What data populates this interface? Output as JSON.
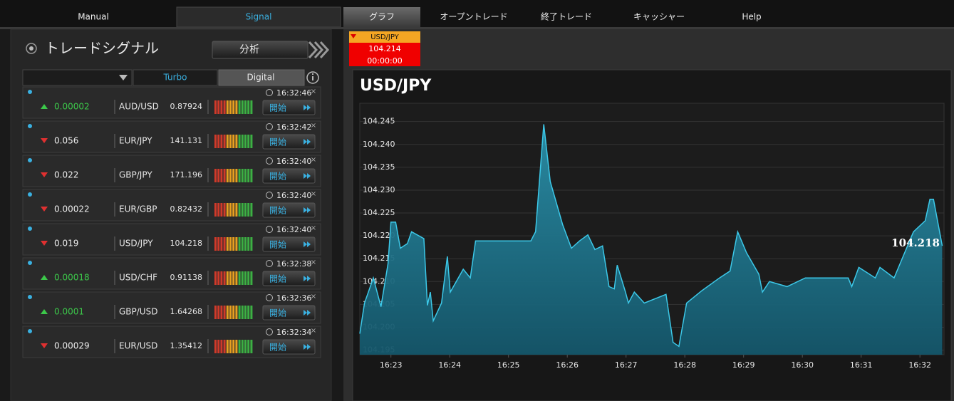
{
  "nav": {
    "left_tabs": [
      "Manual",
      "Signal"
    ],
    "right_tabs": [
      "グラフ",
      "オープントレード",
      "終了トレード",
      "キャッシャー",
      "Help"
    ]
  },
  "signals": {
    "title": "トレードシグナル",
    "analyze_button": "分析",
    "tabs": [
      "Turbo",
      "Digital"
    ],
    "rows": [
      {
        "direction": "up",
        "change": "0.00002",
        "pair": "AUD/USD",
        "price": "0.87924",
        "time": "16:32:46",
        "button": "開始"
      },
      {
        "direction": "down",
        "change": "0.056",
        "pair": "EUR/JPY",
        "price": "141.131",
        "time": "16:32:42",
        "button": "開始"
      },
      {
        "direction": "down",
        "change": "0.022",
        "pair": "GBP/JPY",
        "price": "171.196",
        "time": "16:32:40",
        "button": "開始"
      },
      {
        "direction": "down",
        "change": "0.00022",
        "pair": "EUR/GBP",
        "price": "0.82432",
        "time": "16:32:40",
        "button": "開始"
      },
      {
        "direction": "down",
        "change": "0.019",
        "pair": "USD/JPY",
        "price": "104.218",
        "time": "16:32:40",
        "button": "開始"
      },
      {
        "direction": "up",
        "change": "0.00018",
        "pair": "USD/CHF",
        "price": "0.91138",
        "time": "16:32:38",
        "button": "開始"
      },
      {
        "direction": "up",
        "change": "0.0001",
        "pair": "GBP/USD",
        "price": "1.64268",
        "time": "16:32:36",
        "button": "開始"
      },
      {
        "direction": "down",
        "change": "0.00029",
        "pair": "EUR/USD",
        "price": "1.35412",
        "time": "16:32:34",
        "button": "開始"
      }
    ]
  },
  "ticker": {
    "pair": "USD/JPY",
    "price": "104.214",
    "timer": "00:00:00"
  },
  "chart_data": {
    "type": "area",
    "title": "USD/JPY",
    "color": "#3cc8e8",
    "annotation": "104.218",
    "x": [
      982.47,
      982.55,
      982.7,
      982.83,
      982.95,
      983.0,
      983.08,
      983.16,
      983.28,
      983.35,
      983.56,
      983.62,
      983.67,
      983.72,
      983.86,
      983.96,
      984.01,
      984.23,
      984.35,
      984.44,
      985.38,
      985.46,
      985.6,
      985.71,
      985.92,
      986.07,
      986.21,
      986.35,
      986.47,
      986.6,
      986.71,
      986.8,
      986.85,
      986.99,
      987.04,
      987.14,
      987.31,
      987.68,
      987.8,
      987.9,
      988.03,
      988.29,
      988.59,
      988.77,
      988.9,
      989.05,
      989.26,
      989.32,
      989.44,
      989.74,
      990.05,
      990.78,
      990.84,
      990.96,
      991.24,
      991.32,
      991.56,
      991.89,
      992.09,
      992.17,
      992.23,
      992.38
    ],
    "values": [
      104.1986,
      104.2053,
      104.2108,
      104.2045,
      104.2139,
      104.223,
      104.223,
      104.2173,
      104.2183,
      104.2209,
      104.2194,
      104.2048,
      104.2077,
      104.2014,
      104.2053,
      104.2155,
      104.2077,
      104.2127,
      104.2108,
      104.2189,
      104.2189,
      104.2209,
      104.2444,
      104.2319,
      104.2225,
      104.2173,
      104.2189,
      104.2202,
      104.217,
      104.2178,
      104.2089,
      104.2084,
      104.2136,
      104.2077,
      104.2053,
      104.2077,
      104.2053,
      104.2072,
      104.1967,
      104.1958,
      104.2053,
      104.208,
      104.2108,
      104.2123,
      104.2209,
      104.2163,
      104.2116,
      104.2077,
      104.21,
      104.2089,
      104.2108,
      104.2108,
      104.2089,
      104.2131,
      104.2108,
      104.2131,
      104.2108,
      104.2209,
      104.2233,
      104.228,
      104.228,
      104.2178
    ],
    "xlim": [
      982.47,
      992.41
    ],
    "xticks": [
      {
        "value": 983,
        "label": "16:23"
      },
      {
        "value": 984,
        "label": "16:24"
      },
      {
        "value": 985,
        "label": "16:25"
      },
      {
        "value": 986,
        "label": "16:26"
      },
      {
        "value": 987,
        "label": "16:27"
      },
      {
        "value": 988,
        "label": "16:28"
      },
      {
        "value": 989,
        "label": "16:29"
      },
      {
        "value": 990,
        "label": "16:30"
      },
      {
        "value": 991,
        "label": "16:31"
      },
      {
        "value": 992,
        "label": "16:32"
      }
    ],
    "ylim": [
      104.194,
      104.249
    ],
    "yticks": [
      104.195,
      {
        "value": 104.2,
        "label": "104.200"
      },
      104.205,
      {
        "value": 104.21,
        "label": "104.210"
      },
      104.215,
      {
        "value": 104.22,
        "label": "104.220"
      },
      104.225,
      {
        "value": 104.23,
        "label": "104.230"
      },
      104.235,
      {
        "value": 104.24,
        "label": "104.240"
      },
      104.245
    ],
    "grid": true
  }
}
